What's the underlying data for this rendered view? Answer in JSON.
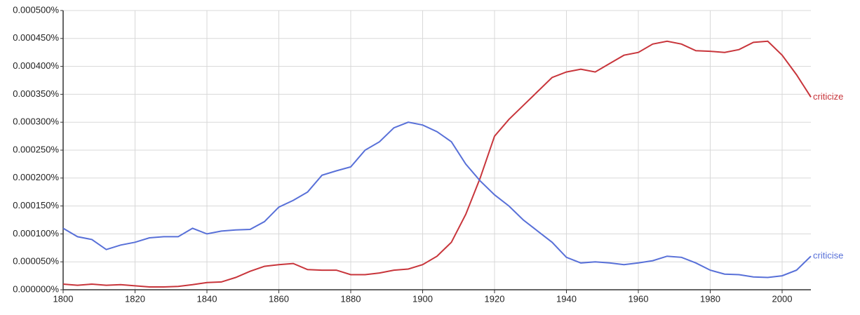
{
  "chart_data": {
    "type": "line",
    "x": [
      1800,
      1804,
      1808,
      1812,
      1816,
      1820,
      1824,
      1828,
      1832,
      1836,
      1840,
      1844,
      1848,
      1852,
      1856,
      1860,
      1864,
      1868,
      1872,
      1876,
      1880,
      1884,
      1888,
      1892,
      1896,
      1900,
      1904,
      1908,
      1912,
      1916,
      1920,
      1924,
      1928,
      1932,
      1936,
      1940,
      1944,
      1948,
      1952,
      1956,
      1960,
      1964,
      1968,
      1972,
      1976,
      1980,
      1984,
      1988,
      1992,
      1996,
      2000,
      2004,
      2008
    ],
    "series": [
      {
        "name": "criticize",
        "color": "#c8353b",
        "values": [
          1e-05,
          8e-06,
          1e-05,
          8e-06,
          9e-06,
          7e-06,
          5e-06,
          5e-06,
          6e-06,
          9e-06,
          1.3e-05,
          1.4e-05,
          2.2e-05,
          3.3e-05,
          4.2e-05,
          4.5e-05,
          4.7e-05,
          3.6e-05,
          3.5e-05,
          3.5e-05,
          2.7e-05,
          2.7e-05,
          3e-05,
          3.5e-05,
          3.7e-05,
          4.5e-05,
          6e-05,
          8.5e-05,
          0.000135,
          0.0002,
          0.000275,
          0.000305,
          0.00033,
          0.000355,
          0.00038,
          0.00039,
          0.000395,
          0.00039,
          0.000405,
          0.00042,
          0.000425,
          0.00044,
          0.000445,
          0.00044,
          0.000428,
          0.000427,
          0.000425,
          0.00043,
          0.000443,
          0.000445,
          0.00042,
          0.000385,
          0.000345
        ]
      },
      {
        "name": "criticise",
        "color": "#5870d8",
        "values": [
          0.00011,
          9.5e-05,
          9e-05,
          7.2e-05,
          8e-05,
          8.5e-05,
          9.3e-05,
          9.5e-05,
          9.5e-05,
          0.00011,
          0.0001,
          0.000105,
          0.000107,
          0.000108,
          0.000122,
          0.000148,
          0.00016,
          0.000175,
          0.000205,
          0.000213,
          0.00022,
          0.00025,
          0.000265,
          0.00029,
          0.0003,
          0.000295,
          0.000283,
          0.000265,
          0.000225,
          0.000195,
          0.00017,
          0.00015,
          0.000125,
          0.000105,
          8.5e-05,
          5.8e-05,
          4.8e-05,
          5e-05,
          4.8e-05,
          4.5e-05,
          4.8e-05,
          5.2e-05,
          6e-05,
          5.8e-05,
          4.8e-05,
          3.5e-05,
          2.8e-05,
          2.7e-05,
          2.3e-05,
          2.2e-05,
          2.5e-05,
          3.5e-05,
          6e-05
        ]
      }
    ],
    "xlim": [
      1800,
      2008
    ],
    "xticks": [
      1800,
      1820,
      1840,
      1860,
      1880,
      1900,
      1920,
      1940,
      1960,
      1980,
      2000
    ],
    "ylim": [
      0,
      0.0005
    ],
    "yticks": [
      {
        "value": 0,
        "label": "0.000000%"
      },
      {
        "value": 5e-05,
        "label": "0.000050%"
      },
      {
        "value": 0.0001,
        "label": "0.000100%"
      },
      {
        "value": 0.00015,
        "label": "0.000150%"
      },
      {
        "value": 0.0002,
        "label": "0.000200%"
      },
      {
        "value": 0.00025,
        "label": "0.000250%"
      },
      {
        "value": 0.0003,
        "label": "0.000300%"
      },
      {
        "value": 0.00035,
        "label": "0.000350%"
      },
      {
        "value": 0.0004,
        "label": "0.000400%"
      },
      {
        "value": 0.00045,
        "label": "0.000450%"
      },
      {
        "value": 0.0005,
        "label": "0.000500%"
      }
    ],
    "grid": true
  }
}
